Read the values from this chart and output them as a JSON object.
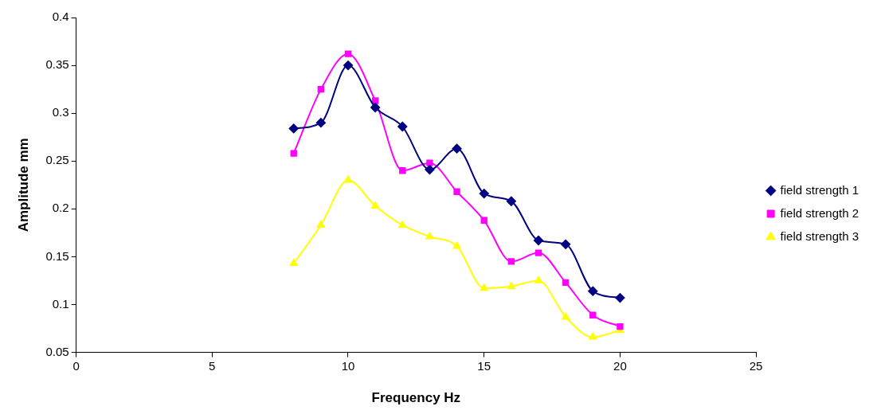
{
  "chart_data": {
    "type": "line",
    "xlabel": "Frequency Hz",
    "ylabel": "Amplitude mm",
    "xlim": [
      0,
      25
    ],
    "xticks": [
      0,
      5,
      10,
      15,
      20,
      25
    ],
    "ylim": [
      0.05,
      0.4
    ],
    "yticks": [
      0.05,
      0.1,
      0.15,
      0.2,
      0.25,
      0.3,
      0.35,
      0.4
    ],
    "grid": false,
    "legend": "right",
    "x": [
      8,
      9,
      10,
      11,
      12,
      13,
      14,
      15,
      16,
      17,
      18,
      19,
      20
    ],
    "series": [
      {
        "name": "field strength 1",
        "color": "#000080",
        "marker": "diamond",
        "values": [
          0.284,
          0.29,
          0.35,
          0.306,
          0.286,
          0.241,
          0.263,
          0.216,
          0.208,
          0.167,
          0.163,
          0.114,
          0.107
        ]
      },
      {
        "name": "field strength 2",
        "color": "#ff00ff",
        "marker": "square",
        "values": [
          0.258,
          0.325,
          0.362,
          0.313,
          0.24,
          0.248,
          0.218,
          0.188,
          0.145,
          0.154,
          0.123,
          0.089,
          0.077
        ]
      },
      {
        "name": "field strength 3",
        "color": "#ffff00",
        "marker": "triangle",
        "values": [
          0.143,
          0.183,
          0.23,
          0.203,
          0.183,
          0.171,
          0.161,
          0.117,
          0.119,
          0.125,
          0.087,
          0.066,
          0.073
        ]
      }
    ]
  }
}
